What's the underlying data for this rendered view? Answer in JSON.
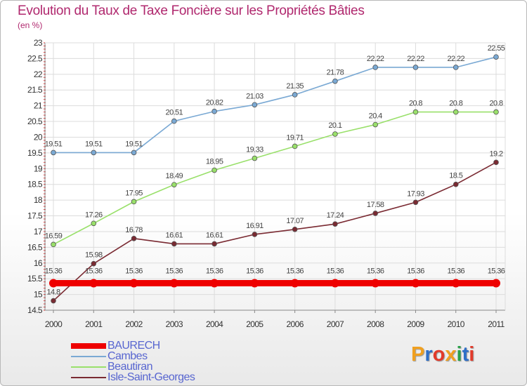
{
  "title": "Evolution du Taux de Taxe Foncière sur les Propriétés Bâties",
  "unit": "(en %)",
  "logo": {
    "text": "Proxiti",
    "colors": [
      "#f0a020",
      "#2e6fc8",
      "#e23a2a",
      "#f0a020",
      "#28a048",
      "#2e6fc8",
      "#e23a2a"
    ]
  },
  "chart_data": {
    "type": "line",
    "x": [
      2000,
      2001,
      2002,
      2003,
      2004,
      2005,
      2006,
      2007,
      2008,
      2009,
      2010,
      2011
    ],
    "ylim": [
      14.5,
      23
    ],
    "yticks": [
      14.5,
      15,
      15.5,
      16,
      16.5,
      17,
      17.5,
      18,
      18.5,
      19,
      19.5,
      20,
      20.5,
      21,
      21.5,
      22,
      22.5,
      23
    ],
    "grid": true,
    "legend_position": "bottom-left",
    "series": [
      {
        "name": "BAURECH",
        "color": "#ee0000",
        "values": [
          15.36,
          15.36,
          15.36,
          15.36,
          15.36,
          15.36,
          15.36,
          15.36,
          15.36,
          15.36,
          15.36,
          15.36
        ],
        "labels": [
          "15.36",
          "15.36",
          "15.36",
          "15.36",
          "15.36",
          "15.36",
          "15.36",
          "15.36",
          "15.36",
          "15.36",
          "15.36",
          "15.36"
        ]
      },
      {
        "name": "Cambes",
        "color": "#7aa9d4",
        "values": [
          19.51,
          19.51,
          19.51,
          20.51,
          20.82,
          21.03,
          21.35,
          21.78,
          22.22,
          22.22,
          22.22,
          22.55
        ],
        "labels": [
          "19.51",
          "19.51",
          "19.51",
          "20.51",
          "20.82",
          "21.03",
          "21.35",
          "21.78",
          "22.22",
          "22.22",
          "22.22",
          "22.55"
        ]
      },
      {
        "name": "Beautiran",
        "color": "#99e06a",
        "values": [
          16.59,
          17.26,
          17.95,
          18.49,
          18.95,
          19.33,
          19.71,
          20.1,
          20.4,
          20.8,
          20.8,
          20.8
        ],
        "labels": [
          "16.59",
          "17.26",
          "17.95",
          "18.49",
          "18.95",
          "19.33",
          "19.71",
          "20.1",
          "20.4",
          "20.8",
          "20.8",
          "20.8"
        ]
      },
      {
        "name": "Isle-Saint-Georges",
        "color": "#7a2a32",
        "values": [
          14.8,
          15.98,
          16.78,
          16.61,
          16.61,
          16.91,
          17.07,
          17.24,
          17.58,
          17.93,
          18.5,
          19.2
        ],
        "labels": [
          "14.8",
          "15.98",
          "16.78",
          "16.61",
          "16.61",
          "16.91",
          "17.07",
          "17.24",
          "17.58",
          "17.93",
          "18.5",
          "19.2"
        ]
      }
    ]
  }
}
